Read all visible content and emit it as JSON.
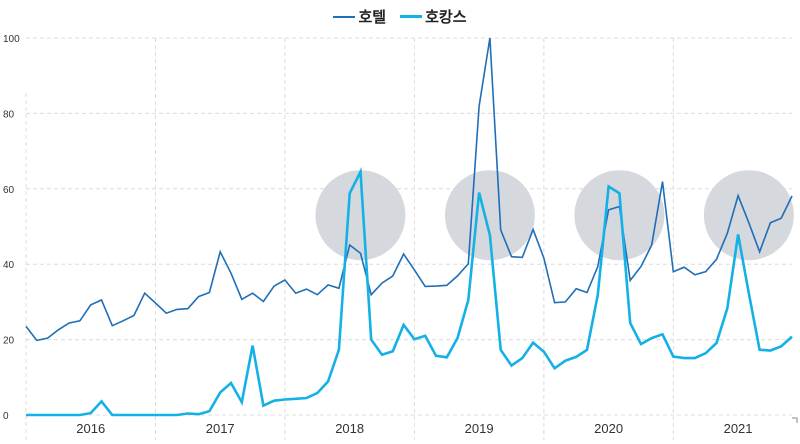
{
  "chart_data": {
    "type": "line",
    "title": "",
    "xlabel": "",
    "ylabel": "",
    "ylim": [
      0,
      100
    ],
    "yticks": [
      "0",
      "20",
      "40",
      "60",
      "80",
      "100"
    ],
    "year_labels": [
      "2016",
      "2017",
      "2018",
      "2019",
      "2020",
      "2021"
    ],
    "x_start": "2016-01",
    "frequency": "monthly",
    "legend_position": "top-center",
    "grid": true,
    "series": [
      {
        "name": "호텔",
        "color": "#1f6fb8",
        "width": 1.6,
        "values": [
          23.5,
          19.8,
          20.4,
          22.6,
          24.4,
          25,
          29.2,
          30.5,
          23.7,
          25,
          26.4,
          32.3,
          29.7,
          27,
          28,
          28.2,
          31.4,
          32.5,
          43.3,
          37.6,
          30.7,
          32.3,
          30.1,
          34.2,
          35.8,
          32.3,
          33.4,
          31.9,
          34.5,
          33.6,
          45.1,
          42.9,
          31.9,
          35,
          36.9,
          42.7,
          38.5,
          34.1,
          34.2,
          34.4,
          36.9,
          40.1,
          81.9,
          100,
          49.1,
          42,
          41.8,
          49.2,
          41.6,
          29.8,
          30,
          33.5,
          32.5,
          39.4,
          54.4,
          55.3,
          35.7,
          39.4,
          45.1,
          61.9,
          38,
          39.2,
          37.2,
          38,
          41.3,
          48.2,
          58.2,
          51,
          43.3,
          51,
          52.2,
          58.1
        ]
      },
      {
        "name": "호캉스",
        "color": "#14b1e7",
        "width": 2.6,
        "values": [
          0,
          0,
          0,
          0,
          0,
          0,
          0.5,
          3.6,
          0,
          0,
          0,
          0,
          0,
          0,
          0,
          0.4,
          0.2,
          1,
          6,
          8.5,
          3.4,
          18.4,
          2.5,
          3.8,
          4.1,
          4.3,
          4.5,
          5.8,
          8.9,
          17.3,
          58.8,
          64.5,
          20,
          16,
          16.9,
          23.9,
          20.1,
          21,
          15.7,
          15.3,
          20.4,
          30.5,
          59,
          47.7,
          17.3,
          13.1,
          15.1,
          19.2,
          16.8,
          12.4,
          14.4,
          15.4,
          17.3,
          31.9,
          60.6,
          58.8,
          24.4,
          18.8,
          20.4,
          21.4,
          15.5,
          15.1,
          15.1,
          16.4,
          19.1,
          28.3,
          47.9,
          32.3,
          17.3,
          17.1,
          18.2,
          20.8
        ]
      }
    ],
    "highlights": [
      {
        "month_index": 31,
        "value": 53
      },
      {
        "month_index": 43,
        "value": 53
      },
      {
        "month_index": 55,
        "value": 53
      },
      {
        "month_index": 67,
        "value": 53
      }
    ],
    "highlight_color": "#d5d8dd",
    "grid_color": "#dcdcdc"
  }
}
